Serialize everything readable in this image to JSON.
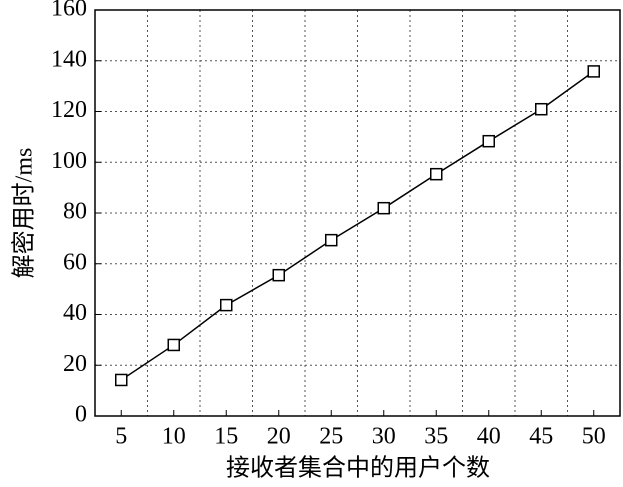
{
  "chart_data": {
    "type": "line",
    "x_label": "接收者集合中的用户个数",
    "y_label": "解密用时/ms",
    "categories": [
      "5",
      "10",
      "15",
      "20",
      "25",
      "30",
      "35",
      "40",
      "45",
      "50"
    ],
    "values": [
      14.2,
      28,
      43.7,
      55.5,
      69.3,
      81.9,
      95.3,
      108.3,
      120.9,
      135.8
    ],
    "color": "#000000",
    "marker": "square",
    "ylim": [
      0,
      160
    ],
    "yticks": [
      0,
      20,
      40,
      60,
      80,
      100,
      120,
      140,
      160
    ],
    "grid": true
  }
}
